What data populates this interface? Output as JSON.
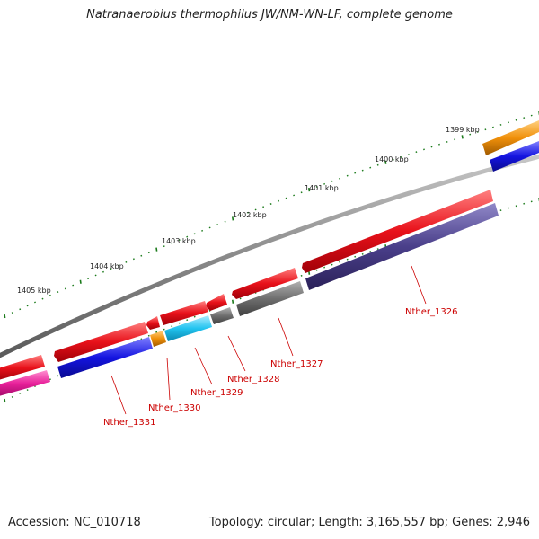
{
  "title": "Natranaerobius thermophilus JW/NM-WN-LF, complete genome",
  "footer": {
    "accession": "Accession: NC_010718",
    "topology": "Topology: circular; Length: 3,165,557 bp; Genes: 2,946"
  },
  "scale_labels": [
    "1399 kbp",
    "1400 kbp",
    "1401 kbp",
    "1402 kbp",
    "1403 kbp",
    "1404 kbp",
    "1405 kbp"
  ],
  "gene_labels": [
    "Nther_1326",
    "Nther_1327",
    "Nther_1328",
    "Nther_1329",
    "Nther_1330",
    "Nther_1331"
  ],
  "colors": {
    "cds": "#e8111a",
    "backbone": "#8a8a8a",
    "blue": "#1414e0",
    "navy": "#4a3f8a",
    "gray": "#6e6e6e",
    "cyan": "#22c4f0",
    "orange": "#f0900a",
    "magenta": "#e8209a",
    "tick": "#1a7a1a",
    "label": "#cc0000"
  }
}
